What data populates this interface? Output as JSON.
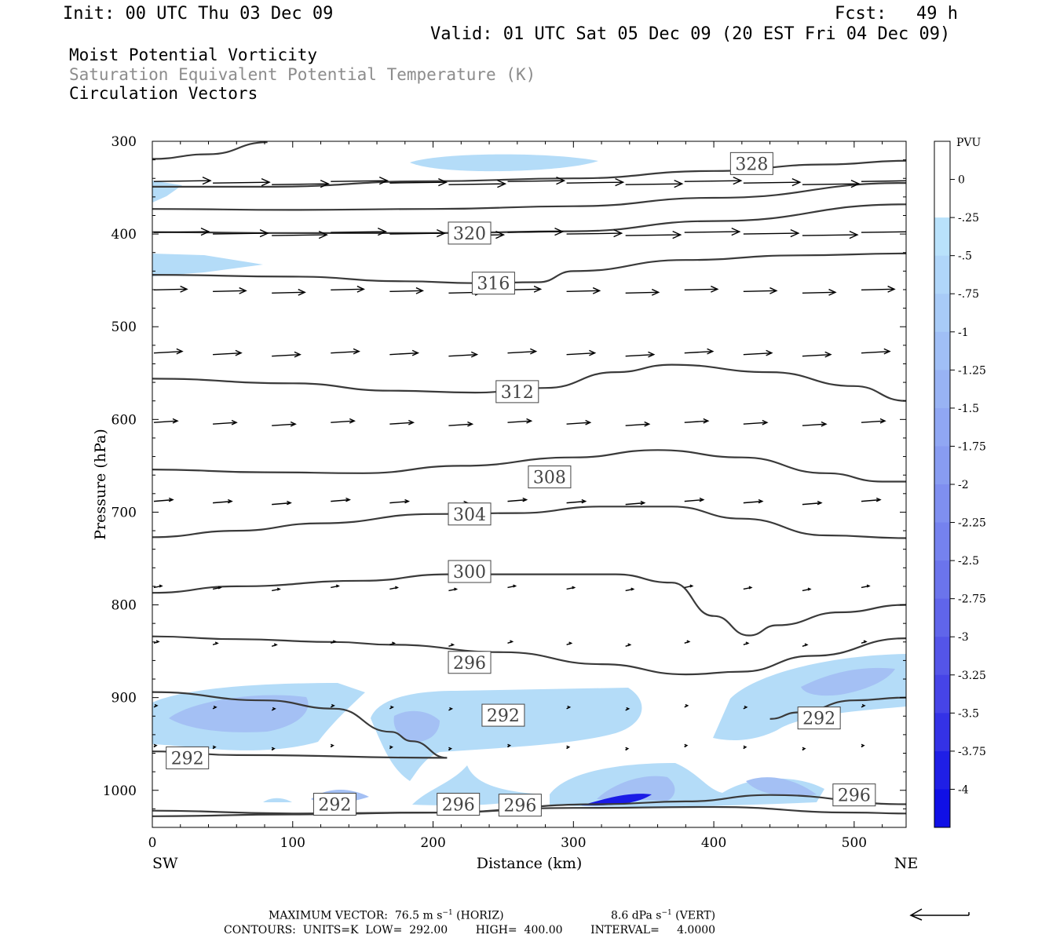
{
  "header": {
    "init": "Init: 00 UTC Thu 03 Dec 09",
    "fcst_label": "Fcst:",
    "fcst_value": "49 h",
    "valid": "Valid: 01 UTC Sat 05 Dec 09 (20 EST Fri 04 Dec 09)"
  },
  "fields": {
    "line1": "Moist Potential Vorticity",
    "line2": "Saturation Equivalent Potential Temperature (K)",
    "line3": "Circulation Vectors"
  },
  "footer": {
    "max_vector_prefix": "MAXIMUM VECTOR:  76.5 m s",
    "sup1": "−1",
    "max_vector_mid": " (HORIZ)",
    "vert_prefix": "8.6 dPa s",
    "sup2": "−1",
    "vert_suffix": " (VERT)",
    "contours": "CONTOURS:  UNITS=K  LOW=  292.00        HIGH=  400.00        INTERVAL=     4.0000"
  },
  "colors": {
    "contour": "#3a3a3a",
    "shade_light": "#b4dcf8",
    "shade_mid": "#a4c0f4",
    "shade_dark": "#1a1ae6"
  },
  "chart_data": {
    "type": "cross-section",
    "xlabel": "Distance (km)",
    "ylabel": "Pressure (hPa)",
    "xlim": [
      0,
      537
    ],
    "ylim": [
      1040,
      300
    ],
    "x_ticks": [
      0,
      100,
      200,
      300,
      400,
      500
    ],
    "y_ticks": [
      300,
      400,
      500,
      600,
      700,
      800,
      900,
      1000
    ],
    "x_end_labels": {
      "left": "SW",
      "right": "NE"
    },
    "colorbar": {
      "title": "PVU",
      "labels": [
        "0",
        "-.25",
        "-.5",
        "-.75",
        "-1",
        "-1.25",
        "-1.5",
        "-1.75",
        "-2",
        "-2.25",
        "-2.5",
        "-2.75",
        "-3",
        "-3.25",
        "-3.5",
        "-3.75",
        "-4"
      ],
      "colors": [
        "#ffffff",
        "#ffffff",
        "#b9e2fb",
        "#b0d6f9",
        "#a8cbf7",
        "#a0bff6",
        "#98b3f4",
        "#90a7f3",
        "#889cf1",
        "#7f8ff0",
        "#7582ee",
        "#6b74ec",
        "#6065ea",
        "#5455e8",
        "#4644e7",
        "#3432e6",
        "#1f1fe6",
        "#1010e6"
      ]
    },
    "contour_labels": [
      {
        "value": "328",
        "x": 427,
        "p": 324
      },
      {
        "value": "320",
        "x": 226,
        "p": 399
      },
      {
        "value": "316",
        "x": 243,
        "p": 453
      },
      {
        "value": "312",
        "x": 260,
        "p": 570
      },
      {
        "value": "308",
        "x": 283,
        "p": 662
      },
      {
        "value": "304",
        "x": 226,
        "p": 702
      },
      {
        "value": "300",
        "x": 226,
        "p": 764
      },
      {
        "value": "296",
        "x": 226,
        "p": 862
      },
      {
        "value": "292",
        "x": 250,
        "p": 919
      },
      {
        "value": "292",
        "x": 25,
        "p": 965
      },
      {
        "value": "292",
        "x": 475,
        "p": 922
      },
      {
        "value": "292",
        "x": 130,
        "p": 1015
      },
      {
        "value": "296",
        "x": 218,
        "p": 1015
      },
      {
        "value": "296",
        "x": 262,
        "p": 1016
      },
      {
        "value": "296",
        "x": 500,
        "p": 1005
      }
    ],
    "contours": [
      {
        "value": 332,
        "points": [
          [
            0,
            319
          ],
          [
            40,
            314
          ],
          [
            82,
            301
          ]
        ]
      },
      {
        "value": 328,
        "points": [
          [
            0,
            349
          ],
          [
            80,
            349
          ],
          [
            200,
            343
          ],
          [
            300,
            340
          ],
          [
            400,
            332
          ],
          [
            480,
            325
          ],
          [
            537,
            321
          ]
        ]
      },
      {
        "value": 324,
        "points": [
          [
            0,
            373
          ],
          [
            100,
            374
          ],
          [
            200,
            373
          ],
          [
            300,
            370
          ],
          [
            400,
            361
          ],
          [
            537,
            345
          ]
        ]
      },
      {
        "value": 320,
        "points": [
          [
            0,
            398
          ],
          [
            100,
            399
          ],
          [
            200,
            399
          ],
          [
            300,
            397
          ],
          [
            400,
            386
          ],
          [
            537,
            368
          ]
        ]
      },
      {
        "value": 316,
        "points": [
          [
            0,
            444
          ],
          [
            100,
            446
          ],
          [
            180,
            451
          ],
          [
            230,
            453
          ],
          [
            275,
            452
          ],
          [
            300,
            440
          ],
          [
            380,
            428
          ],
          [
            460,
            423
          ],
          [
            537,
            421
          ]
        ]
      },
      {
        "value": 312,
        "points": [
          [
            0,
            556
          ],
          [
            100,
            561
          ],
          [
            170,
            569
          ],
          [
            230,
            571
          ],
          [
            280,
            566
          ],
          [
            330,
            549
          ],
          [
            370,
            541
          ],
          [
            440,
            549
          ],
          [
            500,
            564
          ],
          [
            537,
            580
          ]
        ]
      },
      {
        "value": 308,
        "points": [
          [
            0,
            654
          ],
          [
            80,
            657
          ],
          [
            150,
            658
          ],
          [
            220,
            650
          ],
          [
            300,
            641
          ],
          [
            360,
            633
          ],
          [
            420,
            641
          ],
          [
            480,
            658
          ],
          [
            520,
            667
          ],
          [
            537,
            667
          ]
        ]
      },
      {
        "value": 304,
        "points": [
          [
            0,
            727
          ],
          [
            60,
            720
          ],
          [
            120,
            712
          ],
          [
            200,
            702
          ],
          [
            260,
            701
          ],
          [
            320,
            694
          ],
          [
            370,
            694
          ],
          [
            420,
            707
          ],
          [
            480,
            725
          ],
          [
            537,
            728
          ]
        ]
      },
      {
        "value": 300,
        "points": [
          [
            0,
            787
          ],
          [
            60,
            780
          ],
          [
            150,
            774
          ],
          [
            210,
            767
          ],
          [
            270,
            767
          ],
          [
            330,
            767
          ],
          [
            370,
            776
          ],
          [
            400,
            812
          ],
          [
            425,
            833
          ],
          [
            445,
            822
          ],
          [
            490,
            808
          ],
          [
            537,
            800
          ]
        ]
      },
      {
        "value": 296,
        "points": [
          [
            0,
            834
          ],
          [
            60,
            837
          ],
          [
            130,
            840
          ],
          [
            170,
            843
          ],
          [
            250,
            851
          ],
          [
            320,
            864
          ],
          [
            380,
            875
          ],
          [
            420,
            872
          ],
          [
            470,
            855
          ],
          [
            537,
            836
          ]
        ]
      },
      {
        "value": 292,
        "points": [
          [
            0,
            894
          ],
          [
            80,
            903
          ],
          [
            130,
            912
          ],
          [
            170,
            937
          ],
          [
            185,
            947
          ],
          [
            210,
            965
          ],
          [
            60,
            962
          ],
          [
            0,
            958
          ]
        ]
      },
      {
        "value": 292,
        "points": [
          [
            440,
            923
          ],
          [
            460,
            916
          ],
          [
            500,
            903
          ],
          [
            537,
            900
          ]
        ]
      },
      {
        "value": 296,
        "points": [
          [
            0,
            1022
          ],
          [
            100,
            1025
          ],
          [
            200,
            1024
          ],
          [
            300,
            1019
          ],
          [
            400,
            1018
          ],
          [
            500,
            1024
          ],
          [
            537,
            1025
          ]
        ]
      },
      {
        "value": 296,
        "points": [
          [
            0,
            1028
          ],
          [
            100,
            1026
          ],
          [
            200,
            1024
          ],
          [
            320,
            1015
          ],
          [
            380,
            1012
          ],
          [
            440,
            1005
          ],
          [
            537,
            1015
          ]
        ]
      }
    ]
  }
}
